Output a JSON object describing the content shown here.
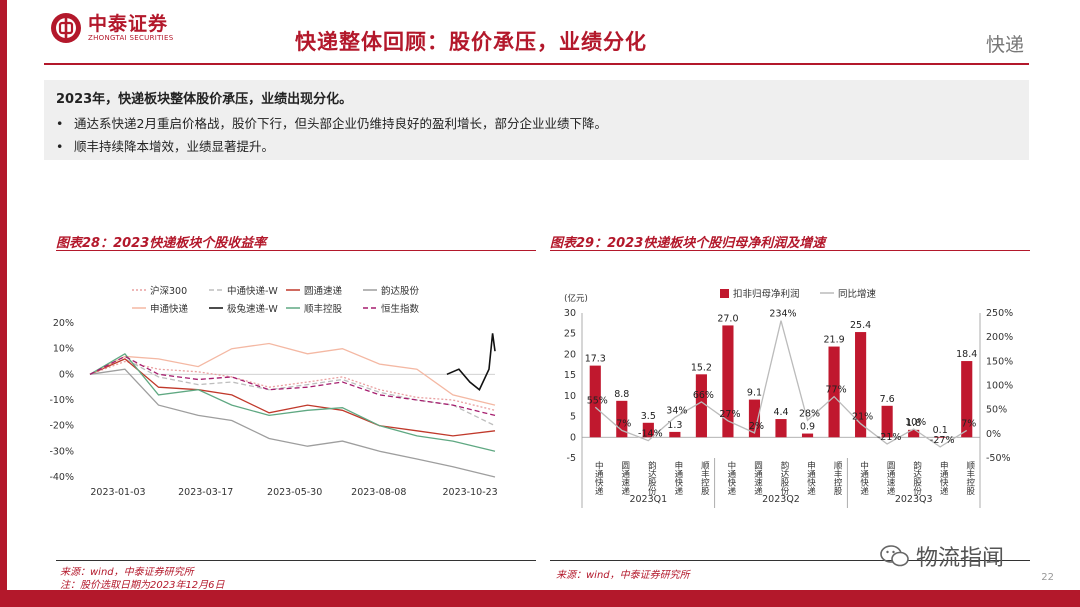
{
  "header": {
    "logo_cn": "中泰证券",
    "logo_en": "ZHONGTAI SECURITIES",
    "title": "快递整体回顾：股价承压，业绩分化",
    "section": "快递"
  },
  "summary": {
    "heading": "2023年，快递板块整体股价承压，业绩出现分化。",
    "bullets": [
      "通达系快递2月重启价格战，股价下行，但头部企业仍维持良好的盈利增长，部分企业业绩下降。",
      "顺丰持续降本增效，业绩显著提升。"
    ]
  },
  "left_figure": {
    "title": "图表28：2023快递板块个股收益率",
    "source": "来源：wind，中泰证券研究所",
    "note": "注：股价选取日期为2023年12月6日"
  },
  "right_figure": {
    "title": "图表29：2023快递板块个股归母净利润及增速",
    "source": "来源：wind，中泰证券研究所"
  },
  "footer": {
    "page": "22",
    "watermark": "物流指闻"
  },
  "colors": {
    "brand_red": "#b3182b"
  },
  "chart_data": [
    {
      "type": "line",
      "title": "",
      "x_ticks": [
        "2023-01-03",
        "2023-03-17",
        "2023-05-30",
        "2023-08-08",
        "2023-10-23"
      ],
      "x_range": [
        "2023-01-03",
        "2023-12-06"
      ],
      "ylim": [
        -40,
        20
      ],
      "y_ticks": [
        20,
        10,
        0,
        -10,
        -20,
        -30,
        -40
      ],
      "y_unit": "%",
      "grid": false,
      "legend_position": "top",
      "series": [
        {
          "name": "沪深300",
          "color": "#e9a0a0",
          "style": "dotted",
          "points": [
            [
              "2023-01-03",
              0
            ],
            [
              "2023-02-01",
              5
            ],
            [
              "2023-03-01",
              2
            ],
            [
              "2023-04-03",
              1
            ],
            [
              "2023-05-01",
              -1
            ],
            [
              "2023-06-01",
              -5
            ],
            [
              "2023-07-03",
              -3
            ],
            [
              "2023-08-01",
              -1
            ],
            [
              "2023-09-01",
              -6
            ],
            [
              "2023-10-02",
              -9
            ],
            [
              "2023-11-01",
              -10
            ],
            [
              "2023-12-06",
              -14
            ]
          ]
        },
        {
          "name": "中通快递-W",
          "color": "#bdbdbd",
          "style": "dashed",
          "points": [
            [
              "2023-01-03",
              0
            ],
            [
              "2023-02-01",
              6
            ],
            [
              "2023-03-01",
              -1
            ],
            [
              "2023-04-03",
              -4
            ],
            [
              "2023-05-01",
              -3
            ],
            [
              "2023-06-01",
              -6
            ],
            [
              "2023-07-03",
              -4
            ],
            [
              "2023-08-01",
              -2
            ],
            [
              "2023-09-01",
              -7
            ],
            [
              "2023-10-02",
              -10
            ],
            [
              "2023-11-01",
              -12
            ],
            [
              "2023-12-06",
              -20
            ]
          ]
        },
        {
          "name": "圆通速递",
          "color": "#c0392b",
          "style": "solid",
          "points": [
            [
              "2023-01-03",
              0
            ],
            [
              "2023-02-01",
              6
            ],
            [
              "2023-03-01",
              -5
            ],
            [
              "2023-04-03",
              -6
            ],
            [
              "2023-05-01",
              -8
            ],
            [
              "2023-06-01",
              -15
            ],
            [
              "2023-07-03",
              -12
            ],
            [
              "2023-08-01",
              -14
            ],
            [
              "2023-09-01",
              -20
            ],
            [
              "2023-10-02",
              -22
            ],
            [
              "2023-11-01",
              -24
            ],
            [
              "2023-12-06",
              -22
            ]
          ]
        },
        {
          "name": "韵达股份",
          "color": "#9e9e9e",
          "style": "solid",
          "points": [
            [
              "2023-01-03",
              0
            ],
            [
              "2023-02-01",
              2
            ],
            [
              "2023-03-01",
              -12
            ],
            [
              "2023-04-03",
              -16
            ],
            [
              "2023-05-01",
              -18
            ],
            [
              "2023-06-01",
              -25
            ],
            [
              "2023-07-03",
              -28
            ],
            [
              "2023-08-01",
              -26
            ],
            [
              "2023-09-01",
              -30
            ],
            [
              "2023-10-02",
              -33
            ],
            [
              "2023-11-01",
              -36
            ],
            [
              "2023-12-06",
              -40
            ]
          ]
        },
        {
          "name": "申通快递",
          "color": "#f4b8a3",
          "style": "solid",
          "points": [
            [
              "2023-01-03",
              0
            ],
            [
              "2023-02-01",
              7
            ],
            [
              "2023-03-01",
              6
            ],
            [
              "2023-04-03",
              3
            ],
            [
              "2023-05-01",
              10
            ],
            [
              "2023-06-01",
              12
            ],
            [
              "2023-07-03",
              8
            ],
            [
              "2023-08-01",
              10
            ],
            [
              "2023-09-01",
              4
            ],
            [
              "2023-10-02",
              2
            ],
            [
              "2023-11-01",
              -8
            ],
            [
              "2023-12-06",
              -12
            ]
          ]
        },
        {
          "name": "极兔速递-W",
          "color": "#111111",
          "style": "solid",
          "points": [
            [
              "2023-10-27",
              0
            ],
            [
              "2023-11-06",
              2
            ],
            [
              "2023-11-15",
              -3
            ],
            [
              "2023-11-23",
              -6
            ],
            [
              "2023-12-01",
              2
            ],
            [
              "2023-12-04",
              16
            ],
            [
              "2023-12-06",
              9
            ]
          ]
        },
        {
          "name": "顺丰控股",
          "color": "#5fa882",
          "style": "solid",
          "points": [
            [
              "2023-01-03",
              0
            ],
            [
              "2023-02-01",
              8
            ],
            [
              "2023-03-01",
              -8
            ],
            [
              "2023-04-03",
              -6
            ],
            [
              "2023-05-01",
              -12
            ],
            [
              "2023-06-01",
              -16
            ],
            [
              "2023-07-03",
              -14
            ],
            [
              "2023-08-01",
              -13
            ],
            [
              "2023-09-01",
              -20
            ],
            [
              "2023-10-02",
              -24
            ],
            [
              "2023-11-01",
              -26
            ],
            [
              "2023-12-06",
              -30
            ]
          ]
        },
        {
          "name": "恒生指数",
          "color": "#a61d6e",
          "style": "dashed",
          "points": [
            [
              "2023-01-03",
              0
            ],
            [
              "2023-02-01",
              7
            ],
            [
              "2023-03-01",
              0
            ],
            [
              "2023-04-03",
              -2
            ],
            [
              "2023-05-01",
              -1
            ],
            [
              "2023-06-01",
              -6
            ],
            [
              "2023-07-03",
              -5
            ],
            [
              "2023-08-01",
              -3
            ],
            [
              "2023-09-01",
              -8
            ],
            [
              "2023-10-02",
              -10
            ],
            [
              "2023-11-01",
              -12
            ],
            [
              "2023-12-06",
              -16
            ]
          ]
        }
      ]
    },
    {
      "type": "bar",
      "title": "",
      "left_unit": "(亿元)",
      "left_ylim": [
        -5,
        30
      ],
      "left_ticks": [
        30,
        25,
        20,
        15,
        10,
        5,
        0,
        -5
      ],
      "right_ylim": [
        -50,
        250
      ],
      "right_ticks": [
        "250%",
        "200%",
        "150%",
        "100%",
        "50%",
        "0%",
        "-50%"
      ],
      "legend_position": "top",
      "categories": [
        "中通快递",
        "圆通速递",
        "韵达股份",
        "申通快递",
        "顺丰控股",
        "中通快递",
        "圆通速递",
        "韵达股份",
        "申通快递",
        "顺丰控股",
        "中通快递",
        "圆通速递",
        "韵达股份",
        "申通快递",
        "顺丰控股"
      ],
      "groups": [
        "2023Q1",
        "2023Q2",
        "2023Q3"
      ],
      "series": [
        {
          "name": "扣非归母净利润",
          "kind": "bar",
          "color": "#c0182e",
          "axis": "left",
          "values": [
            17.3,
            8.8,
            3.5,
            1.3,
            15.2,
            27.0,
            9.1,
            4.4,
            0.9,
            21.9,
            25.4,
            7.6,
            1.8,
            0.1,
            18.4
          ],
          "labels": [
            "17.3",
            "8.8",
            "3.5",
            "1.3",
            "15.2",
            "27.0",
            "9.1",
            "4.4",
            "0.9",
            "21.9",
            "25.4",
            "7.6",
            "1.8",
            "0.1",
            "18.4"
          ]
        },
        {
          "name": "同比增速",
          "kind": "line",
          "color": "#bbbbbb",
          "axis": "right",
          "values": [
            55,
            7,
            -14,
            34,
            66,
            27,
            2,
            234,
            28,
            77,
            21,
            -21,
            10,
            -27,
            7
          ],
          "labels": [
            "55%",
            "7%",
            "-14%",
            "34%",
            "66%",
            "27%",
            "2%",
            "234%",
            "28%",
            "77%",
            "21%",
            "-21%",
            "10%",
            "-27%",
            "7%"
          ]
        }
      ]
    }
  ]
}
